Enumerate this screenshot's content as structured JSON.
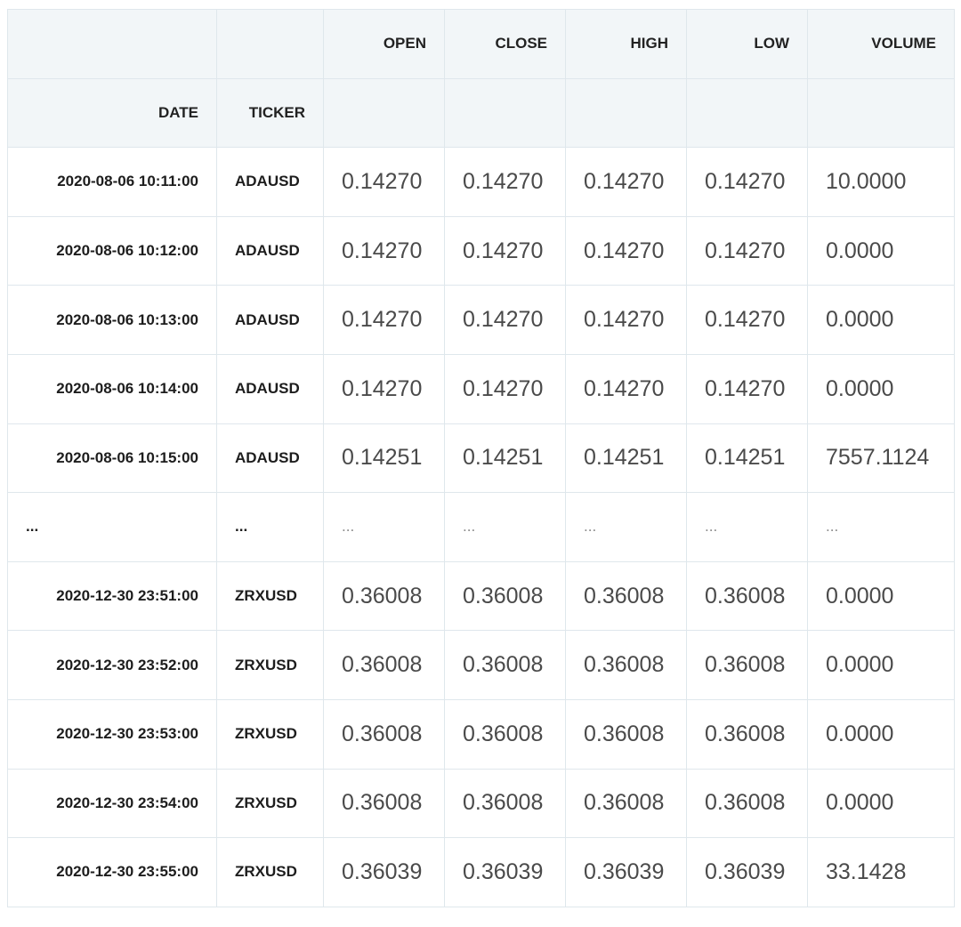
{
  "table": {
    "columns": [
      "OPEN",
      "CLOSE",
      "HIGH",
      "LOW",
      "VOLUME"
    ],
    "index_names": [
      "DATE",
      "TICKER"
    ],
    "rows": [
      [
        "2020-08-06 10:11:00",
        "ADAUSD",
        "0.14270",
        "0.14270",
        "0.14270",
        "0.14270",
        "10.0000"
      ],
      [
        "2020-08-06 10:12:00",
        "ADAUSD",
        "0.14270",
        "0.14270",
        "0.14270",
        "0.14270",
        "0.0000"
      ],
      [
        "2020-08-06 10:13:00",
        "ADAUSD",
        "0.14270",
        "0.14270",
        "0.14270",
        "0.14270",
        "0.0000"
      ],
      [
        "2020-08-06 10:14:00",
        "ADAUSD",
        "0.14270",
        "0.14270",
        "0.14270",
        "0.14270",
        "0.0000"
      ],
      [
        "2020-08-06 10:15:00",
        "ADAUSD",
        "0.14251",
        "0.14251",
        "0.14251",
        "0.14251",
        "7557.1124"
      ],
      [
        "...",
        "...",
        "...",
        "...",
        "...",
        "...",
        "..."
      ],
      [
        "2020-12-30 23:51:00",
        "ZRXUSD",
        "0.36008",
        "0.36008",
        "0.36008",
        "0.36008",
        "0.0000"
      ],
      [
        "2020-12-30 23:52:00",
        "ZRXUSD",
        "0.36008",
        "0.36008",
        "0.36008",
        "0.36008",
        "0.0000"
      ],
      [
        "2020-12-30 23:53:00",
        "ZRXUSD",
        "0.36008",
        "0.36008",
        "0.36008",
        "0.36008",
        "0.0000"
      ],
      [
        "2020-12-30 23:54:00",
        "ZRXUSD",
        "0.36008",
        "0.36008",
        "0.36008",
        "0.36008",
        "0.0000"
      ],
      [
        "2020-12-30 23:55:00",
        "ZRXUSD",
        "0.36039",
        "0.36039",
        "0.36039",
        "0.36039",
        "33.1428"
      ]
    ]
  }
}
